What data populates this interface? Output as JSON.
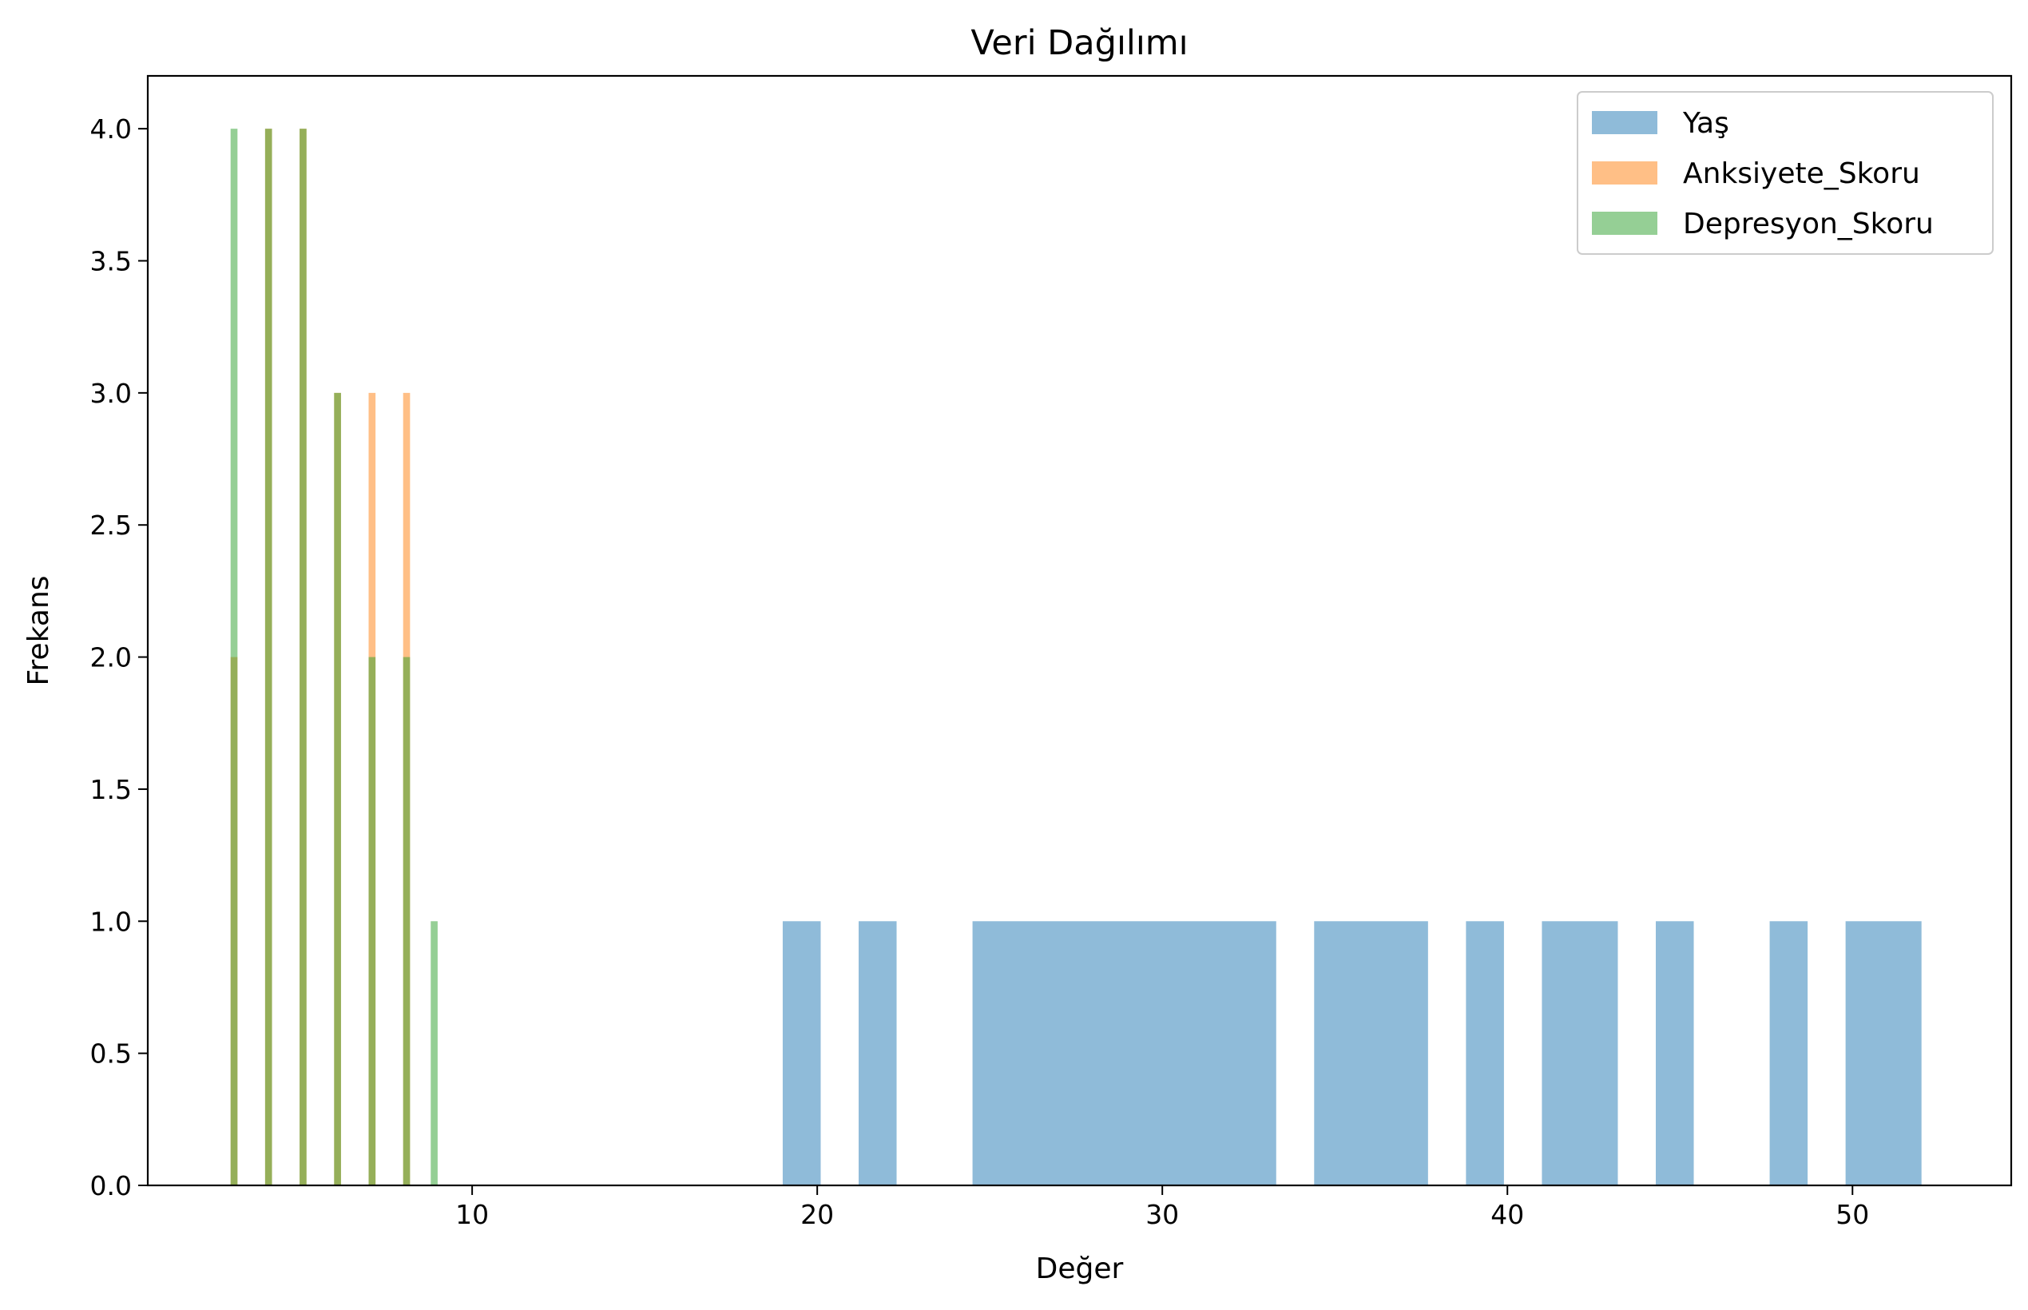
{
  "chart_data": {
    "type": "bar",
    "subtype": "overlaid-histogram",
    "title": "Veri Dağılımı",
    "xlabel": "Değer",
    "ylabel": "Frekans",
    "xlim": [
      0.6,
      54.6
    ],
    "ylim": [
      0,
      4.2
    ],
    "x_ticks": [
      10,
      20,
      30,
      40,
      50
    ],
    "y_ticks": [
      0.0,
      0.5,
      1.0,
      1.5,
      2.0,
      2.5,
      3.0,
      3.5,
      4.0
    ],
    "x_tick_labels": [
      "10",
      "20",
      "30",
      "40",
      "50"
    ],
    "y_tick_labels": [
      "0.0",
      "0.5",
      "1.0",
      "1.5",
      "2.0",
      "2.5",
      "3.0",
      "3.5",
      "4.0"
    ],
    "grid": false,
    "legend_position": "top-right",
    "bar_opacity": 0.5,
    "series": [
      {
        "name": "Yaş",
        "color": "#1f77b4",
        "bins": [
          {
            "x0": 19.0,
            "x1": 20.1,
            "count": 1
          },
          {
            "x0": 21.2,
            "x1": 22.3,
            "count": 1
          },
          {
            "x0": 24.5,
            "x1": 33.3,
            "count": 1
          },
          {
            "x0": 34.4,
            "x1": 37.7,
            "count": 1
          },
          {
            "x0": 38.8,
            "x1": 39.9,
            "count": 1
          },
          {
            "x0": 41.0,
            "x1": 43.2,
            "count": 1
          },
          {
            "x0": 44.3,
            "x1": 45.4,
            "count": 1
          },
          {
            "x0": 47.6,
            "x1": 48.7,
            "count": 1
          },
          {
            "x0": 49.8,
            "x1": 52.0,
            "count": 1
          }
        ]
      },
      {
        "name": "Anksiyete_Skoru",
        "color": "#ff7f0e",
        "bins": [
          {
            "x0": 3.0,
            "x1": 3.2,
            "count": 2
          },
          {
            "x0": 4.0,
            "x1": 4.2,
            "count": 4
          },
          {
            "x0": 5.0,
            "x1": 5.2,
            "count": 4
          },
          {
            "x0": 6.0,
            "x1": 6.2,
            "count": 3
          },
          {
            "x0": 7.0,
            "x1": 7.2,
            "count": 3
          },
          {
            "x0": 8.0,
            "x1": 8.2,
            "count": 3
          }
        ]
      },
      {
        "name": "Depresyon_Skoru",
        "color": "#2ca02c",
        "bins": [
          {
            "x0": 3.0,
            "x1": 3.2,
            "count": 4
          },
          {
            "x0": 4.0,
            "x1": 4.2,
            "count": 4
          },
          {
            "x0": 5.0,
            "x1": 5.2,
            "count": 4
          },
          {
            "x0": 6.0,
            "x1": 6.2,
            "count": 3
          },
          {
            "x0": 7.0,
            "x1": 7.2,
            "count": 2
          },
          {
            "x0": 8.0,
            "x1": 8.2,
            "count": 2
          },
          {
            "x0": 8.8,
            "x1": 9.0,
            "count": 1
          }
        ]
      }
    ]
  }
}
